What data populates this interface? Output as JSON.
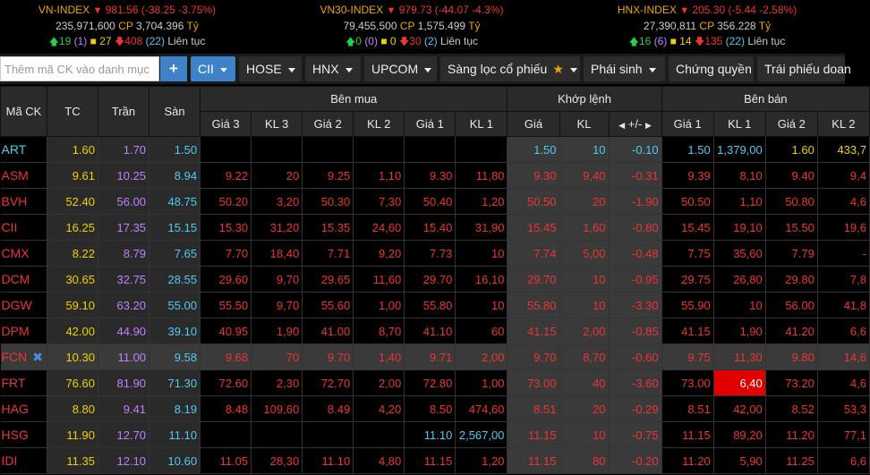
{
  "indexes": [
    {
      "name": "VN-INDEX",
      "value": "981.56",
      "change": "(-38.25 -3.75%)",
      "volume": "235,971,600",
      "cp_label": "CP",
      "value_traded": "3,704.396",
      "unit": "Tỷ",
      "up": "19",
      "up_ceiling": "(1)",
      "ref": "27",
      "down": "408",
      "down_floor": "(22)",
      "session": "Liên tục"
    },
    {
      "name": "VN30-INDEX",
      "value": "979.73",
      "change": "(-44.07 -4.3%)",
      "volume": "79,455,500",
      "cp_label": "CP",
      "value_traded": "1,575.499",
      "unit": "Tỷ",
      "up": "0",
      "up_ceiling": "(0)",
      "ref": "0",
      "down": "30",
      "down_floor": "(2)",
      "session": "Liên tục"
    },
    {
      "name": "HNX-INDEX",
      "value": "205.30",
      "change": "(-5.44 -2.58%)",
      "volume": "27,390,811",
      "cp_label": "CP",
      "value_traded": "356.228",
      "unit": "Tỷ",
      "up": "16",
      "up_ceiling": "(6)",
      "ref": "14",
      "down": "135",
      "down_floor": "(22)",
      "session": "Liên tục"
    }
  ],
  "toolbar": {
    "search_placeholder": "Thêm mã CK vào danh mục",
    "add_label": "+",
    "buttons": [
      "CII",
      "HOSE",
      "HNX",
      "UPCOM",
      "Sàng lọc cổ phiếu",
      "Phái sinh",
      "Chứng quyền",
      "Trái phiếu doan"
    ]
  },
  "headers": {
    "symbol": "Mã CK",
    "ref": "TC",
    "ceiling": "Trần",
    "floor": "Sàn",
    "bid_group": "Bên mua",
    "match_group": "Khớp lệnh",
    "ask_group": "Bên bán",
    "bid_cols": [
      "Giá 3",
      "KL 3",
      "Giá 2",
      "KL 2",
      "Giá 1",
      "KL 1"
    ],
    "match_cols": [
      "Giá",
      "KL",
      "+/-"
    ],
    "ask_cols": [
      "Giá 1",
      "KL 1",
      "Giá 2",
      "KL 2"
    ]
  },
  "colors": {
    "up": "#28d048",
    "ref": "#f0d000",
    "down": "#e33333",
    "ceiling": "#c080ff",
    "floor": "#4ecbf5"
  },
  "rows": [
    {
      "sym": "ART",
      "symc": "c",
      "tc": "1.60",
      "tran": "1.70",
      "san": "1.50",
      "cells": [
        [
          "",
          "r"
        ],
        [
          "",
          "r"
        ],
        [
          "",
          "r"
        ],
        [
          "",
          "r"
        ],
        [
          "",
          "r"
        ],
        [
          "",
          "r"
        ],
        [
          "1.50",
          "c"
        ],
        [
          "10",
          "c"
        ],
        [
          "-0.10",
          "c"
        ],
        [
          "1.50",
          "c"
        ],
        [
          "1,379,00",
          "c"
        ],
        [
          "1.60",
          "y"
        ],
        [
          "433,7",
          "y"
        ]
      ]
    },
    {
      "sym": "ASM",
      "symc": "r",
      "tc": "9.61",
      "tran": "10.25",
      "san": "8.94",
      "cells": [
        [
          "9.22",
          "r"
        ],
        [
          "20",
          "r"
        ],
        [
          "9.25",
          "r"
        ],
        [
          "1,10",
          "r"
        ],
        [
          "9.30",
          "r"
        ],
        [
          "11,80",
          "r"
        ],
        [
          "9.30",
          "r"
        ],
        [
          "9,40",
          "r"
        ],
        [
          "-0.31",
          "r"
        ],
        [
          "9.39",
          "r"
        ],
        [
          "8,10",
          "r"
        ],
        [
          "9.40",
          "r"
        ],
        [
          "9,4",
          "r"
        ]
      ]
    },
    {
      "sym": "BVH",
      "symc": "r",
      "tc": "52.40",
      "tran": "56.00",
      "san": "48.75",
      "cells": [
        [
          "50.20",
          "r"
        ],
        [
          "3,20",
          "r"
        ],
        [
          "50.30",
          "r"
        ],
        [
          "7,30",
          "r"
        ],
        [
          "50.40",
          "r"
        ],
        [
          "1,20",
          "r"
        ],
        [
          "50.50",
          "r"
        ],
        [
          "20",
          "r"
        ],
        [
          "-1.90",
          "r"
        ],
        [
          "50.50",
          "r"
        ],
        [
          "1,10",
          "r"
        ],
        [
          "50.80",
          "r"
        ],
        [
          "4,6",
          "r"
        ]
      ]
    },
    {
      "sym": "CII",
      "symc": "r",
      "tc": "16.25",
      "tran": "17.35",
      "san": "15.15",
      "cells": [
        [
          "15.30",
          "r"
        ],
        [
          "31,20",
          "r"
        ],
        [
          "15.35",
          "r"
        ],
        [
          "24,60",
          "r"
        ],
        [
          "15.40",
          "r"
        ],
        [
          "31,90",
          "r"
        ],
        [
          "15.45",
          "r"
        ],
        [
          "1,60",
          "r"
        ],
        [
          "-0.80",
          "r"
        ],
        [
          "15.45",
          "r"
        ],
        [
          "19,10",
          "r"
        ],
        [
          "15.50",
          "r"
        ],
        [
          "19,6",
          "r"
        ]
      ]
    },
    {
      "sym": "CMX",
      "symc": "r",
      "tc": "8.22",
      "tran": "8.79",
      "san": "7.65",
      "cells": [
        [
          "7.70",
          "r"
        ],
        [
          "18,40",
          "r"
        ],
        [
          "7.71",
          "r"
        ],
        [
          "9,20",
          "r"
        ],
        [
          "7.73",
          "r"
        ],
        [
          "10",
          "r"
        ],
        [
          "7.74",
          "r"
        ],
        [
          "5,00",
          "r"
        ],
        [
          "-0.48",
          "r"
        ],
        [
          "7.75",
          "r"
        ],
        [
          "35,60",
          "r"
        ],
        [
          "7.79",
          "r"
        ],
        [
          "-",
          "r"
        ]
      ]
    },
    {
      "sym": "DCM",
      "symc": "r",
      "tc": "30.65",
      "tran": "32.75",
      "san": "28.55",
      "cells": [
        [
          "29.60",
          "r"
        ],
        [
          "9,70",
          "r"
        ],
        [
          "29.65",
          "r"
        ],
        [
          "11,60",
          "r"
        ],
        [
          "29.70",
          "r"
        ],
        [
          "16,10",
          "r"
        ],
        [
          "29.70",
          "r"
        ],
        [
          "10",
          "r"
        ],
        [
          "-0.95",
          "r"
        ],
        [
          "29.75",
          "r"
        ],
        [
          "26,80",
          "r"
        ],
        [
          "29.80",
          "r"
        ],
        [
          "7,8",
          "r"
        ]
      ]
    },
    {
      "sym": "DGW",
      "symc": "r",
      "tc": "59.10",
      "tran": "63.20",
      "san": "55.00",
      "cells": [
        [
          "55.50",
          "r"
        ],
        [
          "9,70",
          "r"
        ],
        [
          "55.60",
          "r"
        ],
        [
          "1,00",
          "r"
        ],
        [
          "55.80",
          "r"
        ],
        [
          "10",
          "r"
        ],
        [
          "55.80",
          "r"
        ],
        [
          "10",
          "r"
        ],
        [
          "-3.30",
          "r"
        ],
        [
          "55.90",
          "r"
        ],
        [
          "10",
          "r"
        ],
        [
          "56.00",
          "r"
        ],
        [
          "41,8",
          "r"
        ]
      ]
    },
    {
      "sym": "DPM",
      "symc": "r",
      "tc": "42.00",
      "tran": "44.90",
      "san": "39.10",
      "cells": [
        [
          "40.95",
          "r"
        ],
        [
          "1,90",
          "r"
        ],
        [
          "41.00",
          "r"
        ],
        [
          "8,70",
          "r"
        ],
        [
          "41.10",
          "r"
        ],
        [
          "60",
          "r"
        ],
        [
          "41.15",
          "r"
        ],
        [
          "2,00",
          "r"
        ],
        [
          "-0.85",
          "r"
        ],
        [
          "41.15",
          "r"
        ],
        [
          "1,90",
          "r"
        ],
        [
          "41.20",
          "r"
        ],
        [
          "6,6",
          "r"
        ]
      ]
    },
    {
      "sym": "FCN",
      "symc": "r",
      "tc": "10.30",
      "tran": "11.00",
      "san": "9.58",
      "sel": true,
      "cells": [
        [
          "9.68",
          "r"
        ],
        [
          "70",
          "r"
        ],
        [
          "9.70",
          "r"
        ],
        [
          "1,40",
          "r"
        ],
        [
          "9.71",
          "r"
        ],
        [
          "2,00",
          "r"
        ],
        [
          "9.70",
          "r"
        ],
        [
          "8,70",
          "r"
        ],
        [
          "-0.60",
          "r"
        ],
        [
          "9.75",
          "r"
        ],
        [
          "11,30",
          "r"
        ],
        [
          "9.80",
          "r"
        ],
        [
          "14,6",
          "r"
        ]
      ]
    },
    {
      "sym": "FRT",
      "symc": "r",
      "tc": "76.60",
      "tran": "81.90",
      "san": "71.30",
      "cells": [
        [
          "72.60",
          "r"
        ],
        [
          "2,30",
          "r"
        ],
        [
          "72.70",
          "r"
        ],
        [
          "2,00",
          "r"
        ],
        [
          "72.80",
          "r"
        ],
        [
          "1,00",
          "r"
        ],
        [
          "73.00",
          "r"
        ],
        [
          "40",
          "r"
        ],
        [
          "-3.60",
          "r"
        ],
        [
          "73.00",
          "r"
        ],
        [
          "6,40",
          "flash"
        ],
        [
          "73.20",
          "r"
        ],
        [
          "4,6",
          "r"
        ]
      ]
    },
    {
      "sym": "HAG",
      "symc": "r",
      "tc": "8.80",
      "tran": "9.41",
      "san": "8.19",
      "cells": [
        [
          "8.48",
          "r"
        ],
        [
          "109,60",
          "r"
        ],
        [
          "8.49",
          "r"
        ],
        [
          "4,20",
          "r"
        ],
        [
          "8.50",
          "r"
        ],
        [
          "474,60",
          "r"
        ],
        [
          "8.51",
          "r"
        ],
        [
          "20",
          "r"
        ],
        [
          "-0.29",
          "r"
        ],
        [
          "8.51",
          "r"
        ],
        [
          "42,00",
          "r"
        ],
        [
          "8.52",
          "r"
        ],
        [
          "53,3",
          "r"
        ]
      ]
    },
    {
      "sym": "HSG",
      "symc": "r",
      "tc": "11.90",
      "tran": "12.70",
      "san": "11.10",
      "cells": [
        [
          "",
          "r"
        ],
        [
          "",
          "r"
        ],
        [
          "",
          "r"
        ],
        [
          "",
          "r"
        ],
        [
          "11.10",
          "c"
        ],
        [
          "2,567,00",
          "c"
        ],
        [
          "11.15",
          "r"
        ],
        [
          "10",
          "r"
        ],
        [
          "-0.75",
          "r"
        ],
        [
          "11.15",
          "r"
        ],
        [
          "89,20",
          "r"
        ],
        [
          "11.20",
          "r"
        ],
        [
          "77,1",
          "r"
        ]
      ]
    },
    {
      "sym": "IDI",
      "symc": "r",
      "tc": "11.35",
      "tran": "12.10",
      "san": "10.60",
      "cells": [
        [
          "11.05",
          "r"
        ],
        [
          "28,30",
          "r"
        ],
        [
          "11.10",
          "r"
        ],
        [
          "4,80",
          "r"
        ],
        [
          "11.15",
          "r"
        ],
        [
          "1,20",
          "r"
        ],
        [
          "11.15",
          "r"
        ],
        [
          "80",
          "r"
        ],
        [
          "-0.20",
          "r"
        ],
        [
          "11.20",
          "r"
        ],
        [
          "5,90",
          "r"
        ],
        [
          "11.25",
          "r"
        ],
        [
          "6,6",
          "r"
        ]
      ]
    }
  ]
}
